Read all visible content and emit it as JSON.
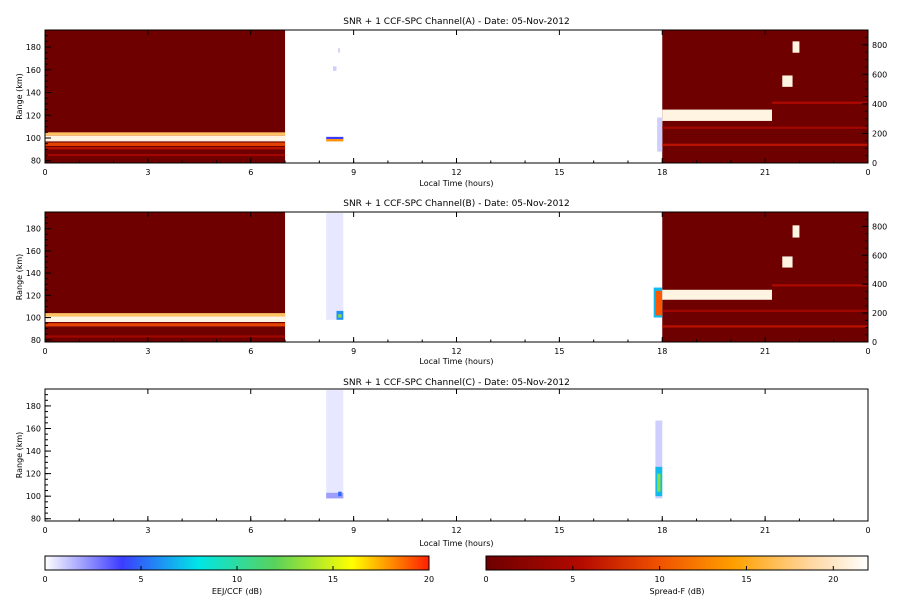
{
  "chart_data": [
    {
      "type": "heatmap",
      "title": "SNR + 1 CCF-SPC Channel(A) - Date: 05-Nov-2012",
      "xlabel": "Local Time (hours)",
      "ylabel": "Range (km)",
      "xlim": [
        0,
        24
      ],
      "ylim": [
        78,
        195
      ],
      "xticks": [
        "0",
        "3",
        "6",
        "9",
        "12",
        "15",
        "18",
        "21",
        "0"
      ],
      "yticks": [
        80,
        100,
        120,
        140,
        160,
        180
      ],
      "right_axis": {
        "ticks": [
          0,
          200,
          400,
          600,
          800
        ]
      },
      "background": [
        {
          "x": [
            0,
            7
          ],
          "y": [
            78,
            195
          ],
          "value": 0,
          "colorbar": "spreadf"
        },
        {
          "x": [
            18,
            24
          ],
          "y": [
            78,
            195
          ],
          "value": 0,
          "colorbar": "spreadf"
        }
      ],
      "cells": [
        {
          "x": [
            0,
            7
          ],
          "y": [
            102,
            105
          ],
          "value": 17,
          "colorbar": "spreadf"
        },
        {
          "x": [
            0,
            7
          ],
          "y": [
            97,
            102
          ],
          "value": 21,
          "colorbar": "spreadf"
        },
        {
          "x": [
            0,
            7
          ],
          "y": [
            93,
            96
          ],
          "value": 9,
          "colorbar": "spreadf"
        },
        {
          "x": [
            0,
            7
          ],
          "y": [
            90,
            92
          ],
          "value": 6,
          "colorbar": "spreadf"
        },
        {
          "x": [
            0,
            7
          ],
          "y": [
            84,
            86
          ],
          "value": 4,
          "colorbar": "spreadf"
        },
        {
          "x": [
            8.2,
            8.7
          ],
          "y": [
            99,
            101
          ],
          "value": 4,
          "colorbar": "eej"
        },
        {
          "x": [
            8.2,
            8.7
          ],
          "y": [
            97,
            99
          ],
          "value": 18,
          "colorbar": "eej"
        },
        {
          "x": [
            8.4,
            8.5
          ],
          "y": [
            159,
            163
          ],
          "value": 1,
          "colorbar": "eej"
        },
        {
          "x": [
            8.55,
            8.6
          ],
          "y": [
            175,
            179
          ],
          "value": 1,
          "colorbar": "eej"
        },
        {
          "x": [
            17.85,
            18
          ],
          "y": [
            88,
            118
          ],
          "value": 1,
          "colorbar": "eej"
        },
        {
          "x": [
            18,
            21.2
          ],
          "y": [
            115,
            125
          ],
          "value": 21,
          "colorbar": "spreadf"
        },
        {
          "x": [
            18,
            24
          ],
          "y": [
            93,
            95
          ],
          "value": 6,
          "colorbar": "spreadf"
        },
        {
          "x": [
            18,
            24
          ],
          "y": [
            108,
            110
          ],
          "value": 4,
          "colorbar": "spreadf"
        },
        {
          "x": [
            21.5,
            21.8
          ],
          "y": [
            145,
            155
          ],
          "value": 21,
          "colorbar": "spreadf"
        },
        {
          "x": [
            21.8,
            22
          ],
          "y": [
            175,
            185
          ],
          "value": 21,
          "colorbar": "spreadf"
        },
        {
          "x": [
            21.2,
            24
          ],
          "y": [
            130,
            132
          ],
          "value": 5,
          "colorbar": "spreadf"
        }
      ]
    },
    {
      "type": "heatmap",
      "title": "SNR + 1 CCF-SPC Channel(B) - Date: 05-Nov-2012",
      "xlabel": "Local Time (hours)",
      "ylabel": "Range (km)",
      "xlim": [
        0,
        24
      ],
      "ylim": [
        78,
        195
      ],
      "xticks": [
        "0",
        "3",
        "6",
        "9",
        "12",
        "15",
        "18",
        "21",
        "0"
      ],
      "yticks": [
        80,
        100,
        120,
        140,
        160,
        180
      ],
      "right_axis": {
        "ticks": [
          0,
          200,
          400,
          600,
          800
        ]
      },
      "background": [
        {
          "x": [
            0,
            7
          ],
          "y": [
            78,
            195
          ],
          "value": 0,
          "colorbar": "spreadf"
        },
        {
          "x": [
            18,
            24
          ],
          "y": [
            78,
            195
          ],
          "value": 0,
          "colorbar": "spreadf"
        }
      ],
      "cells": [
        {
          "x": [
            0,
            7
          ],
          "y": [
            101,
            104
          ],
          "value": 17,
          "colorbar": "spreadf"
        },
        {
          "x": [
            0,
            7
          ],
          "y": [
            96,
            101
          ],
          "value": 21,
          "colorbar": "spreadf"
        },
        {
          "x": [
            0,
            7
          ],
          "y": [
            92,
            95
          ],
          "value": 9,
          "colorbar": "spreadf"
        },
        {
          "x": [
            0,
            7
          ],
          "y": [
            82,
            84
          ],
          "value": 4,
          "colorbar": "spreadf"
        },
        {
          "x": [
            8.2,
            8.7
          ],
          "y": [
            98,
            194
          ],
          "value": 0.5,
          "colorbar": "eej"
        },
        {
          "x": [
            8.5,
            8.7
          ],
          "y": [
            98,
            106
          ],
          "value": 6,
          "colorbar": "eej"
        },
        {
          "x": [
            8.55,
            8.65
          ],
          "y": [
            100,
            103
          ],
          "value": 13,
          "colorbar": "eej"
        },
        {
          "x": [
            17.75,
            18
          ],
          "y": [
            100,
            127
          ],
          "value": 7,
          "colorbar": "eej"
        },
        {
          "x": [
            17.8,
            18
          ],
          "y": [
            102,
            124
          ],
          "value": 19,
          "colorbar": "eej"
        },
        {
          "x": [
            18,
            21.2
          ],
          "y": [
            116,
            125
          ],
          "value": 21,
          "colorbar": "spreadf"
        },
        {
          "x": [
            18,
            24
          ],
          "y": [
            91,
            93
          ],
          "value": 6,
          "colorbar": "spreadf"
        },
        {
          "x": [
            18,
            24
          ],
          "y": [
            105,
            107
          ],
          "value": 4,
          "colorbar": "spreadf"
        },
        {
          "x": [
            21.5,
            21.8
          ],
          "y": [
            145,
            155
          ],
          "value": 21,
          "colorbar": "spreadf"
        },
        {
          "x": [
            21.8,
            22
          ],
          "y": [
            172,
            183
          ],
          "value": 21,
          "colorbar": "spreadf"
        },
        {
          "x": [
            21.2,
            24
          ],
          "y": [
            128,
            130
          ],
          "value": 5,
          "colorbar": "spreadf"
        }
      ]
    },
    {
      "type": "heatmap",
      "title": "SNR + 1 CCF-SPC Channel(C) - Date: 05-Nov-2012",
      "xlabel": "Local Time (hours)",
      "ylabel": "Range (km)",
      "xlim": [
        0,
        24
      ],
      "ylim": [
        78,
        195
      ],
      "xticks": [
        "0",
        "3",
        "6",
        "9",
        "12",
        "15",
        "18",
        "21",
        "0"
      ],
      "yticks": [
        80,
        100,
        120,
        140,
        160,
        180
      ],
      "background": [],
      "cells": [
        {
          "x": [
            8.2,
            8.7
          ],
          "y": [
            98,
            194
          ],
          "value": 0.5,
          "colorbar": "eej"
        },
        {
          "x": [
            8.2,
            8.7
          ],
          "y": [
            98,
            103
          ],
          "value": 2,
          "colorbar": "eej"
        },
        {
          "x": [
            8.55,
            8.65
          ],
          "y": [
            100,
            104
          ],
          "value": 5,
          "colorbar": "eej"
        },
        {
          "x": [
            17.8,
            18
          ],
          "y": [
            98,
            167
          ],
          "value": 1,
          "colorbar": "eej"
        },
        {
          "x": [
            17.8,
            18
          ],
          "y": [
            100,
            126
          ],
          "value": 7,
          "colorbar": "eej"
        },
        {
          "x": [
            17.85,
            17.95
          ],
          "y": [
            104,
            120
          ],
          "value": 13,
          "colorbar": "eej"
        }
      ]
    }
  ],
  "colorbars": [
    {
      "id": "eej",
      "label": "EEJ/CCF (dB)",
      "range": [
        0,
        20
      ],
      "ticks": [
        0,
        5,
        10,
        15,
        20
      ],
      "stops": [
        [
          0,
          "#ffffff"
        ],
        [
          0.2,
          "#3c3cff"
        ],
        [
          0.4,
          "#00e6e6"
        ],
        [
          0.6,
          "#5ad25a"
        ],
        [
          0.8,
          "#ffff00"
        ],
        [
          1,
          "#ff1e00"
        ]
      ]
    },
    {
      "id": "spreadf",
      "label": "Spread-F (dB)",
      "range": [
        0,
        22
      ],
      "ticks": [
        0,
        5,
        10,
        15,
        20
      ],
      "stops": [
        [
          0,
          "#6e0000"
        ],
        [
          0.25,
          "#b40a00"
        ],
        [
          0.45,
          "#f05000"
        ],
        [
          0.65,
          "#ffa000"
        ],
        [
          0.85,
          "#ffd7a0"
        ],
        [
          1,
          "#ffffff"
        ]
      ]
    }
  ]
}
